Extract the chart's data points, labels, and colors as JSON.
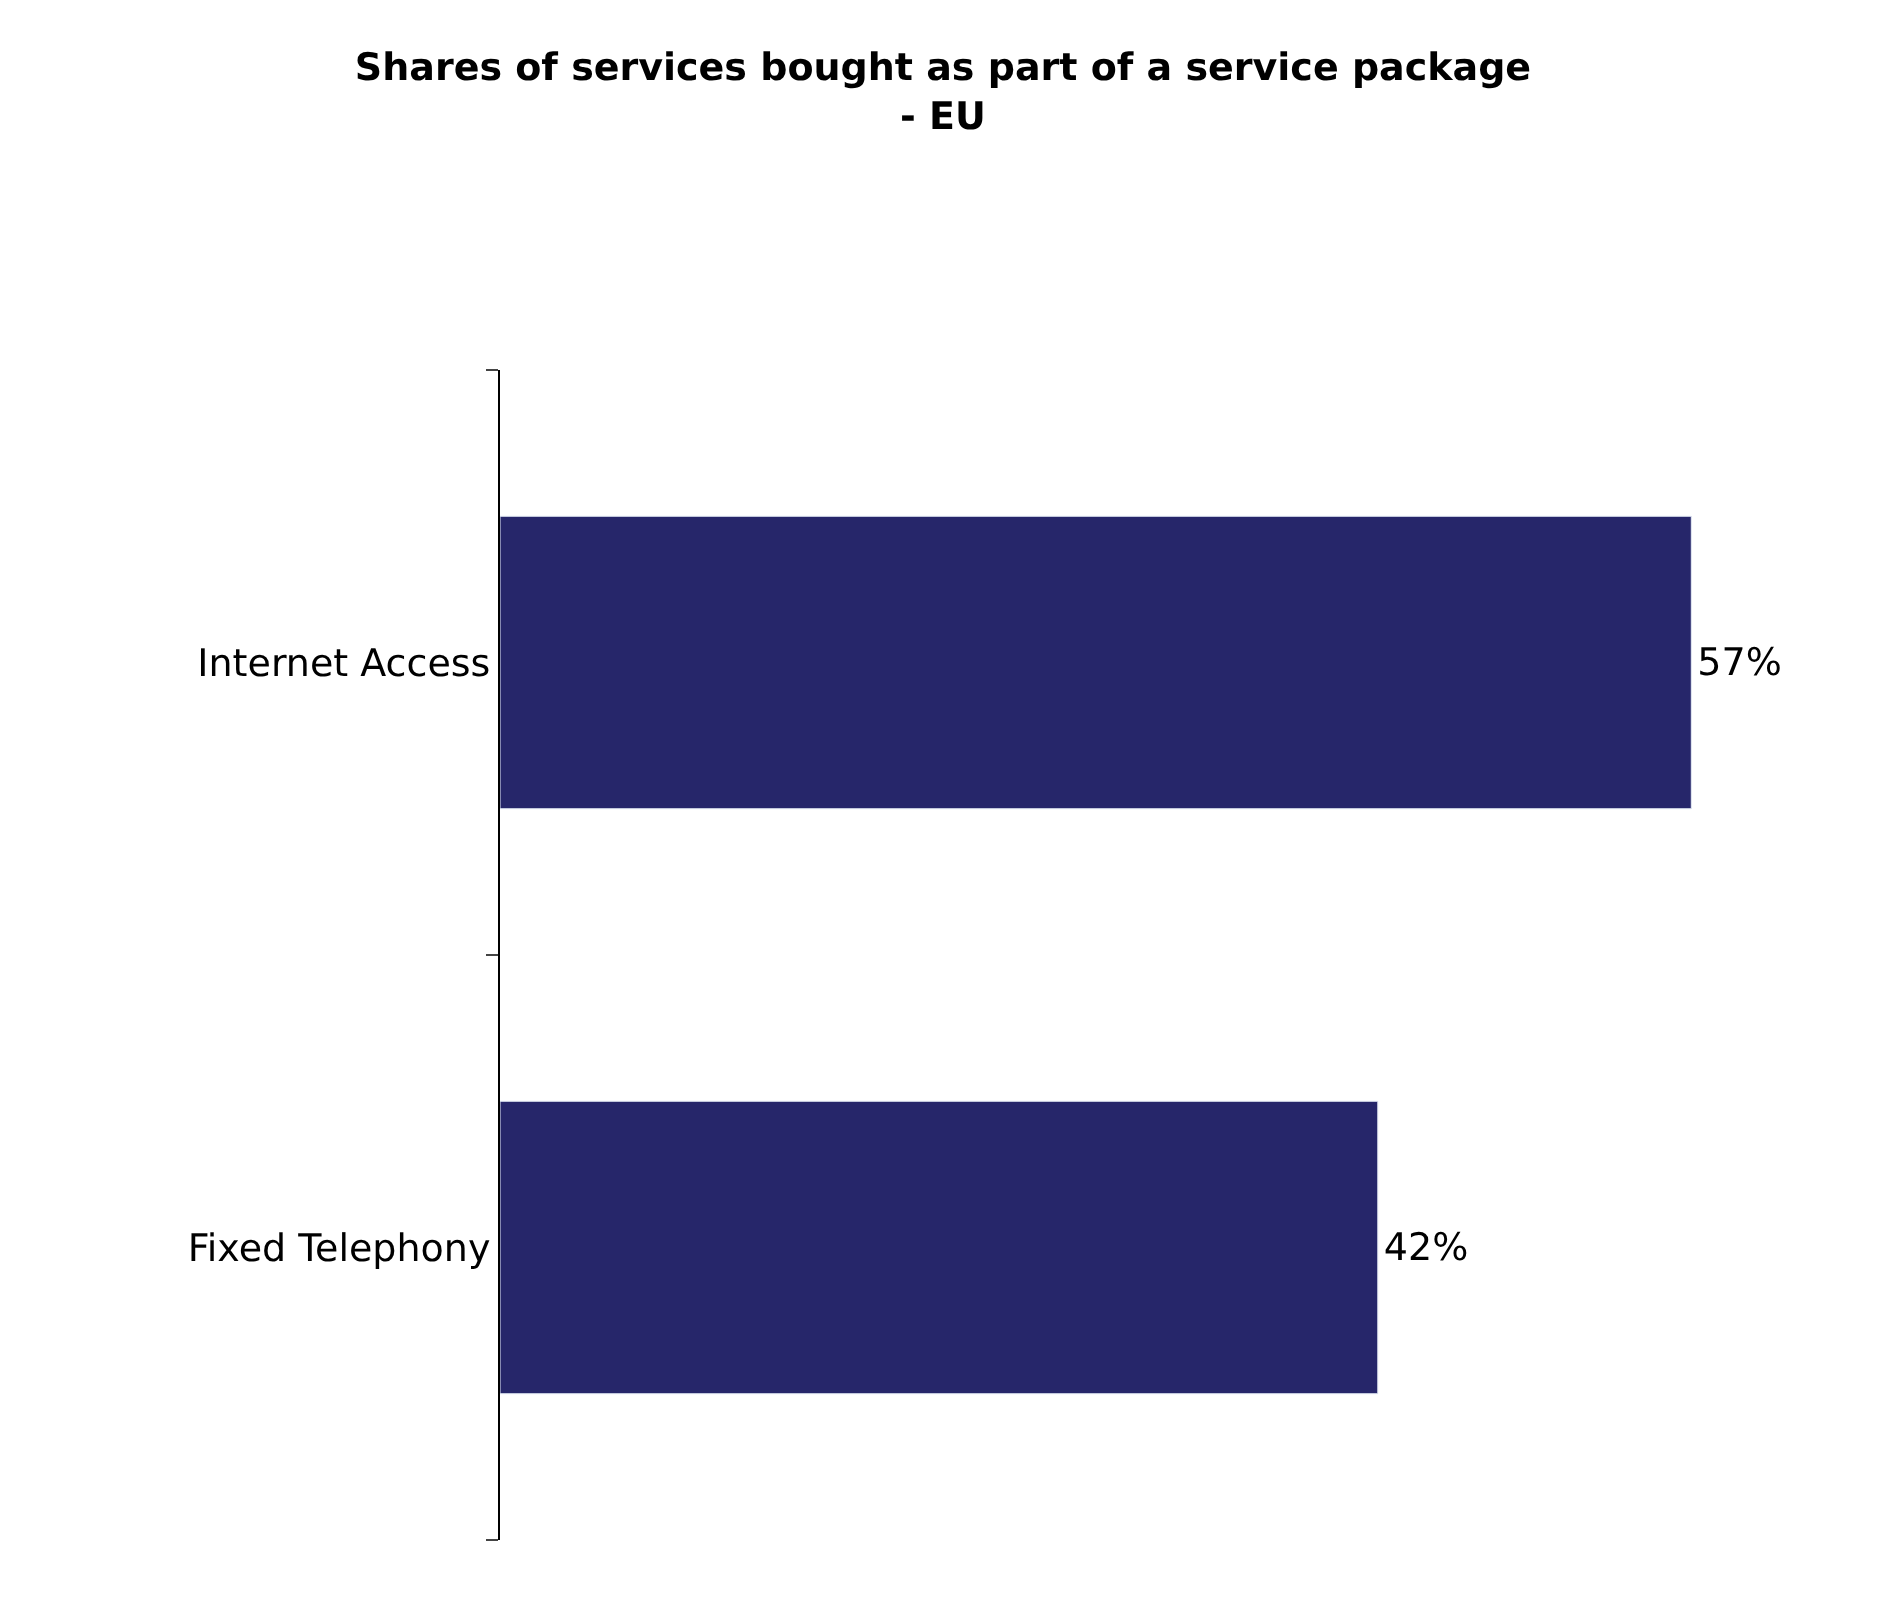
{
  "chart_data": {
    "type": "bar",
    "orientation": "horizontal",
    "title": "Shares of services bought as part of a service package\n- EU",
    "categories": [
      "Internet Access",
      "Fixed Telephony"
    ],
    "values": [
      57,
      42
    ],
    "value_labels": [
      "57%",
      "42%"
    ],
    "color": "#26266a",
    "legend": false
  }
}
